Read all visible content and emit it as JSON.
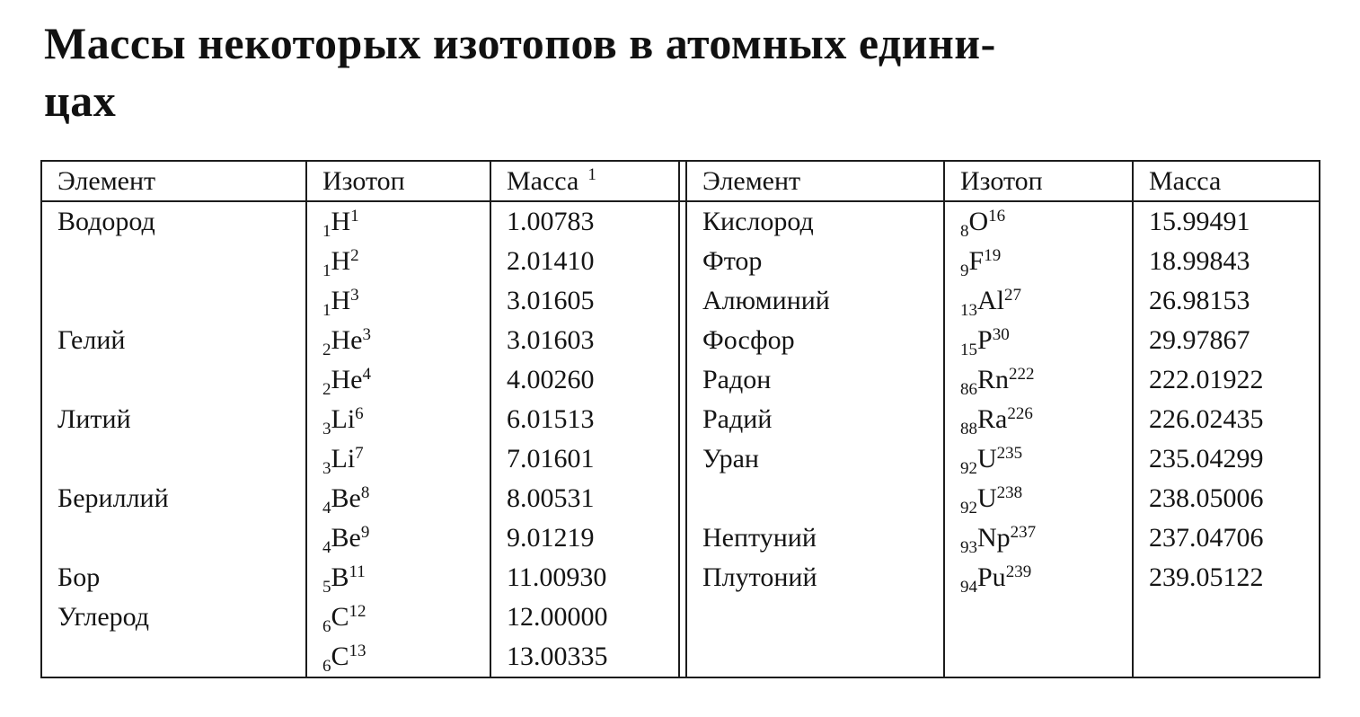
{
  "title": {
    "line1": "Массы некоторых изотопов в атомных едини-",
    "line2": "цах"
  },
  "colors": {
    "background": "#ffffff",
    "text": "#141414",
    "border": "#1c1c1c"
  },
  "table": {
    "left_headers": {
      "element": "Элемент",
      "isotope": "Изотоп",
      "mass": "Масса",
      "mass_footnote_mark": "1"
    },
    "right_headers": {
      "element": "Элемент",
      "isotope": "Изотоп",
      "mass": "Масса"
    },
    "rows": [
      {
        "left": {
          "element": "Водород",
          "iso_sub": "1",
          "iso_sym": "H",
          "iso_sup": "1",
          "mass": "1.00783"
        },
        "right": {
          "element": "Кислород",
          "iso_sub": "8",
          "iso_sym": "O",
          "iso_sup": "16",
          "mass": "15.99491"
        }
      },
      {
        "left": {
          "element": "",
          "iso_sub": "1",
          "iso_sym": "H",
          "iso_sup": "2",
          "mass": "2.01410"
        },
        "right": {
          "element": "Фтор",
          "iso_sub": "9",
          "iso_sym": "F",
          "iso_sup": "19",
          "mass": "18.99843"
        }
      },
      {
        "left": {
          "element": "",
          "iso_sub": "1",
          "iso_sym": "H",
          "iso_sup": "3",
          "mass": "3.01605"
        },
        "right": {
          "element": "Алюминий",
          "iso_sub": "13",
          "iso_sym": "Al",
          "iso_sup": "27",
          "mass": "26.98153"
        }
      },
      {
        "left": {
          "element": "Гелий",
          "iso_sub": "2",
          "iso_sym": "He",
          "iso_sup": "3",
          "mass": "3.01603"
        },
        "right": {
          "element": "Фосфор",
          "iso_sub": "15",
          "iso_sym": "P",
          "iso_sup": "30",
          "mass": "29.97867"
        }
      },
      {
        "left": {
          "element": "",
          "iso_sub": "2",
          "iso_sym": "He",
          "iso_sup": "4",
          "mass": "4.00260"
        },
        "right": {
          "element": "Радон",
          "iso_sub": "86",
          "iso_sym": "Rn",
          "iso_sup": "222",
          "mass": "222.01922"
        }
      },
      {
        "left": {
          "element": "Литий",
          "iso_sub": "3",
          "iso_sym": "Li",
          "iso_sup": "6",
          "mass": "6.01513"
        },
        "right": {
          "element": "Радий",
          "iso_sub": "88",
          "iso_sym": "Ra",
          "iso_sup": "226",
          "mass": "226.02435"
        }
      },
      {
        "left": {
          "element": "",
          "iso_sub": "3",
          "iso_sym": "Li",
          "iso_sup": "7",
          "mass": "7.01601"
        },
        "right": {
          "element": "Уран",
          "iso_sub": "92",
          "iso_sym": "U",
          "iso_sup": "235",
          "mass": "235.04299"
        }
      },
      {
        "left": {
          "element": "Бериллий",
          "iso_sub": "4",
          "iso_sym": "Be",
          "iso_sup": "8",
          "mass": "8.00531"
        },
        "right": {
          "element": "",
          "iso_sub": "92",
          "iso_sym": "U",
          "iso_sup": "238",
          "mass": "238.05006"
        }
      },
      {
        "left": {
          "element": "",
          "iso_sub": "4",
          "iso_sym": "Be",
          "iso_sup": "9",
          "mass": "9.01219"
        },
        "right": {
          "element": "Нептуний",
          "iso_sub": "93",
          "iso_sym": "Np",
          "iso_sup": "237",
          "mass": "237.04706"
        }
      },
      {
        "left": {
          "element": "Бор",
          "iso_sub": "5",
          "iso_sym": "B",
          "iso_sup": "11",
          "mass": "11.00930"
        },
        "right": {
          "element": "Плутоний",
          "iso_sub": "94",
          "iso_sym": "Pu",
          "iso_sup": "239",
          "mass": "239.05122"
        }
      },
      {
        "left": {
          "element": "Углерод",
          "iso_sub": "6",
          "iso_sym": "C",
          "iso_sup": "12",
          "mass": "12.00000"
        },
        "right": null
      },
      {
        "left": {
          "element": "",
          "iso_sub": "6",
          "iso_sym": "C",
          "iso_sup": "13",
          "mass": "13.00335"
        },
        "right": null
      }
    ]
  }
}
